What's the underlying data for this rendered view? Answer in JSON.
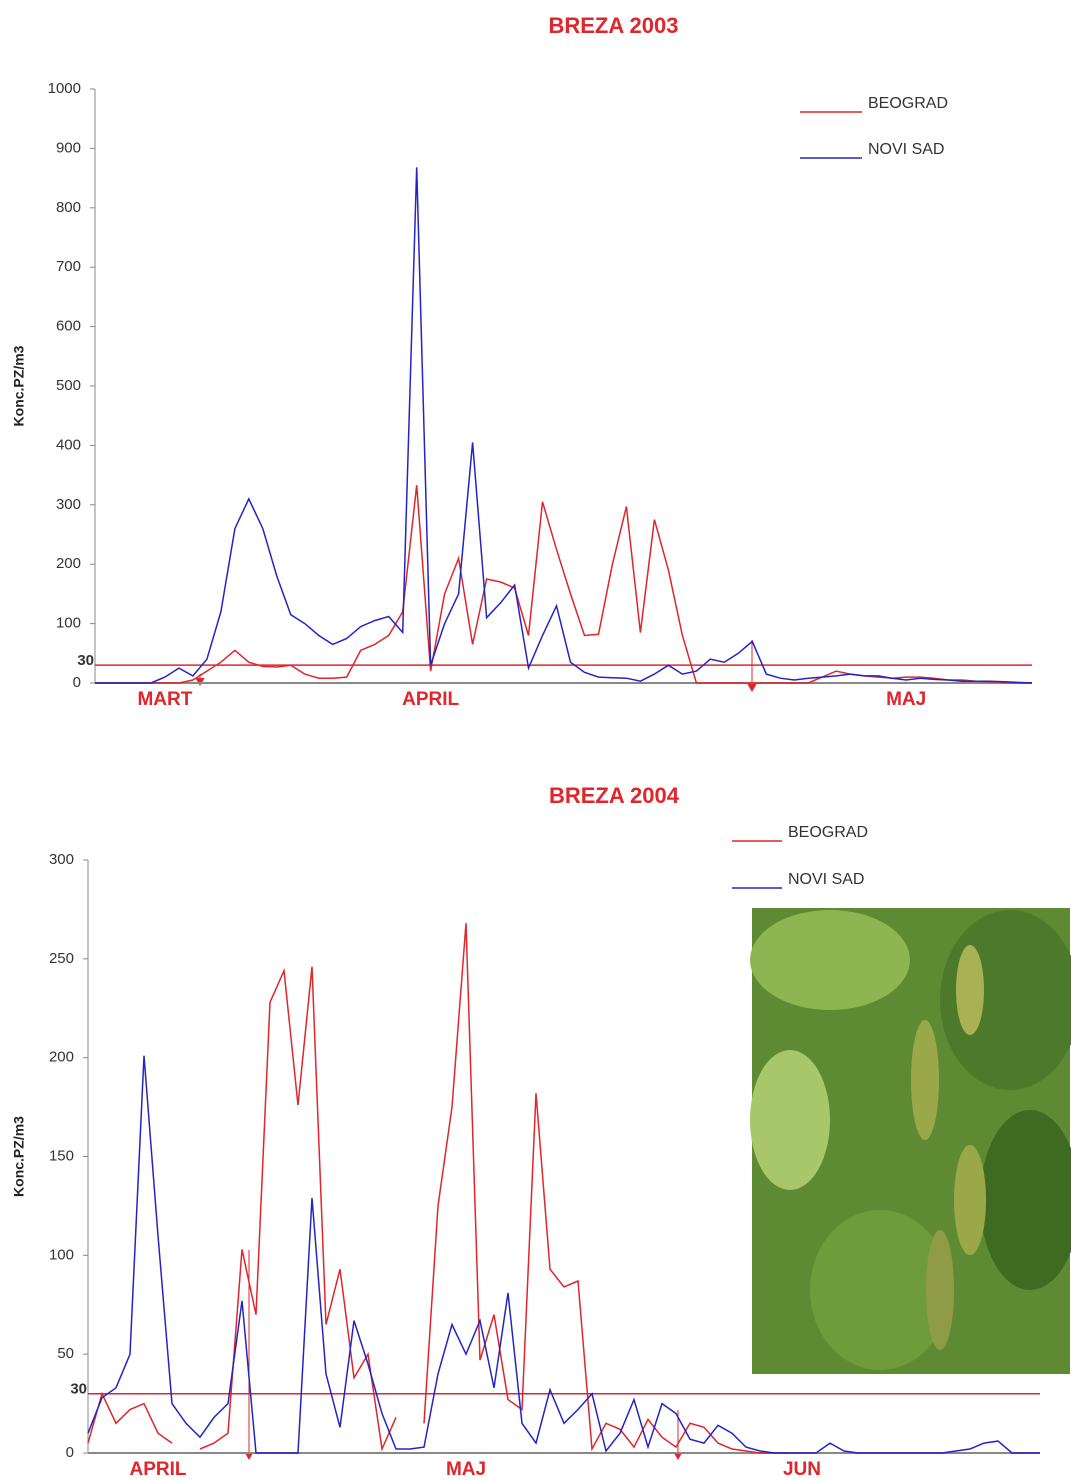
{
  "chart_data": [
    {
      "type": "line",
      "title": "BREZA 2003",
      "y_label": "Konc.PZ/m3",
      "categories": [
        null,
        null,
        null,
        null,
        null,
        "MART",
        null,
        null,
        null,
        null,
        null,
        null,
        null,
        null,
        null,
        null,
        null,
        null,
        null,
        null,
        null,
        null,
        null,
        null,
        "APRIL",
        null,
        null,
        null,
        null,
        null,
        null,
        null,
        null,
        null,
        null,
        null,
        null,
        null,
        null,
        null,
        null,
        null,
        null,
        null,
        null,
        null,
        null,
        null,
        null,
        null,
        null,
        null,
        null,
        null,
        null,
        null,
        null,
        null,
        "MAJ",
        null,
        null,
        null,
        null,
        null,
        null,
        null,
        null,
        null
      ],
      "series": [
        {
          "name": "BEOGRAD",
          "color": "#e0252b",
          "values": [
            0,
            0,
            0,
            0,
            0,
            0,
            0,
            5,
            20,
            35,
            55,
            35,
            28,
            27,
            30,
            15,
            8,
            8,
            10,
            55,
            65,
            80,
            120,
            333,
            20,
            150,
            210,
            65,
            175,
            170,
            160,
            80,
            305,
            225,
            150,
            80,
            82,
            200,
            297,
            85,
            275,
            190,
            80,
            0,
            0,
            0,
            0,
            0,
            0,
            0,
            0,
            0,
            10,
            20,
            15,
            12,
            10,
            8,
            10,
            10,
            8,
            5,
            5,
            3,
            2,
            1,
            0,
            0
          ]
        },
        {
          "name": "NOVI SAD",
          "color": "#2424c4",
          "values": [
            0,
            0,
            0,
            0,
            0,
            10,
            25,
            12,
            40,
            120,
            260,
            310,
            260,
            180,
            115,
            100,
            80,
            65,
            75,
            95,
            105,
            112,
            85,
            868,
            30,
            100,
            150,
            405,
            110,
            135,
            165,
            25,
            80,
            130,
            35,
            18,
            10,
            9,
            8,
            3,
            15,
            30,
            15,
            20,
            40,
            35,
            50,
            70,
            15,
            8,
            5,
            8,
            10,
            12,
            15,
            12,
            12,
            8,
            5,
            8,
            6,
            5,
            3,
            3,
            3,
            2,
            1,
            0
          ]
        }
      ],
      "ylim": [
        0,
        1000
      ],
      "yticks": [
        0,
        100,
        200,
        300,
        400,
        500,
        600,
        700,
        800,
        900,
        1000
      ],
      "threshold": 30,
      "legend": "upper right"
    },
    {
      "type": "line",
      "title": "BREZA 2004",
      "y_label": "Konc.PZ/m3",
      "categories": [
        null,
        null,
        null,
        null,
        null,
        "APRIL",
        null,
        null,
        null,
        null,
        null,
        null,
        null,
        null,
        null,
        null,
        null,
        null,
        null,
        null,
        null,
        null,
        null,
        null,
        null,
        null,
        null,
        "MAJ",
        null,
        null,
        null,
        null,
        null,
        null,
        null,
        null,
        null,
        null,
        null,
        null,
        null,
        null,
        null,
        null,
        null,
        null,
        null,
        null,
        null,
        null,
        null,
        "JUN",
        null,
        null,
        null,
        null,
        null,
        null,
        null,
        null,
        null,
        null,
        null,
        null,
        null,
        null,
        null,
        null,
        null
      ],
      "series": [
        {
          "name": "BEOGRAD",
          "color": "#e0252b",
          "values": [
            5,
            30,
            15,
            22,
            25,
            10,
            5,
            null,
            2,
            5,
            10,
            103,
            70,
            228,
            244,
            176,
            246,
            65,
            93,
            38,
            50,
            2,
            18,
            null,
            15,
            125,
            175,
            268,
            47,
            70,
            27,
            22,
            182,
            93,
            84,
            87,
            2,
            15,
            12,
            3,
            17,
            8,
            3,
            15,
            13,
            5,
            2,
            1,
            0,
            0,
            0,
            null,
            null,
            null,
            null,
            null,
            null,
            null,
            null,
            null,
            null,
            null,
            null,
            null,
            null,
            null,
            null,
            null,
            null
          ]
        },
        {
          "name": "NOVI SAD",
          "color": "#2424c4",
          "values": [
            10,
            28,
            33,
            50,
            201,
            110,
            25,
            15,
            8,
            18,
            25,
            77,
            0,
            0,
            0,
            0,
            129,
            40,
            13,
            67,
            45,
            20,
            2,
            2,
            3,
            40,
            65,
            50,
            67,
            33,
            81,
            15,
            5,
            32,
            15,
            22,
            30,
            1,
            10,
            27,
            3,
            25,
            20,
            7,
            5,
            14,
            10,
            3,
            1,
            0,
            0,
            0,
            0,
            5,
            1,
            0,
            0,
            0,
            0,
            0,
            0,
            0,
            1,
            2,
            5,
            6,
            0,
            0,
            0
          ]
        }
      ],
      "ylim": [
        0,
        300
      ],
      "yticks": [
        0,
        50,
        100,
        150,
        200,
        250,
        300
      ],
      "threshold": 30,
      "legend": "upper right"
    }
  ]
}
